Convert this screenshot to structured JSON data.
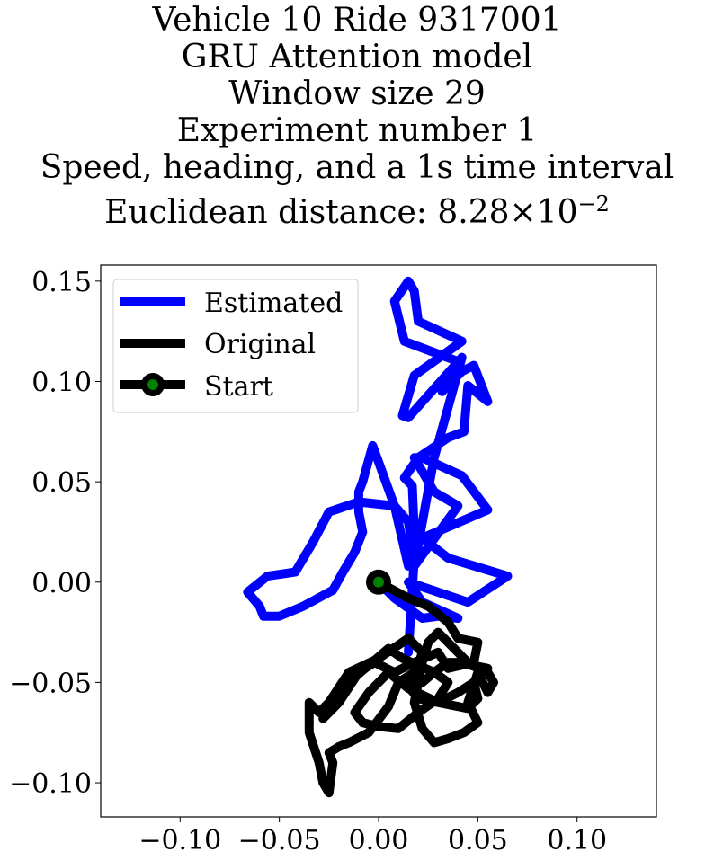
{
  "title_lines": [
    "Vehicle 10 Ride 9317001",
    "GRU Attention model",
    "Window size 29",
    "Experiment number 1",
    "Speed, heading, and a 1s time interval"
  ],
  "distance": {
    "prefix": "Euclidean distance: ",
    "mantissa": "8.28",
    "times": "×",
    "base": "10",
    "exponent": "−2"
  },
  "colors": {
    "estimated": "#0000ff",
    "original": "#000000",
    "start_fill": "#008000"
  },
  "chart_data": {
    "type": "line",
    "xlim": [
      -0.14,
      0.14
    ],
    "ylim": [
      -0.117,
      0.158
    ],
    "xticks": [
      -0.1,
      -0.05,
      0.0,
      0.05,
      0.1
    ],
    "yticks": [
      -0.1,
      -0.05,
      0.0,
      0.05,
      0.1,
      0.15
    ],
    "xtick_labels": [
      "−0.10",
      "−0.05",
      "0.00",
      "0.05",
      "0.10"
    ],
    "ytick_labels": [
      "−0.10",
      "−0.05",
      "0.00",
      "0.05",
      "0.10",
      "0.15"
    ],
    "grid": false,
    "legend_position": "top-left",
    "legend": [
      "Estimated",
      "Original",
      "Start"
    ],
    "series": [
      {
        "name": "Estimated",
        "x": [
          0,
          0.008,
          0.022,
          0.03,
          0.04,
          0.022,
          0.015,
          0.045,
          0.065,
          0.035,
          0.022,
          0.055,
          0.042,
          0.022,
          0.018,
          0.028,
          0.04,
          0.018,
          0.028,
          0.042,
          0.015,
          0.012,
          0.018,
          0.042,
          0.02,
          0.018,
          0.015,
          0.008,
          0.013,
          0.04,
          0.032,
          0.042,
          0.048,
          0.055,
          0.045,
          0.043,
          0.035,
          0.02,
          0.013,
          0.017,
          0.018,
          0.015,
          0.008,
          -0.003,
          -0.008,
          -0.01,
          -0.01,
          -0.008,
          -0.012,
          -0.018,
          -0.023,
          -0.038,
          -0.05,
          -0.058,
          -0.06,
          -0.066,
          -0.056,
          -0.042,
          -0.033,
          -0.025,
          -0.01,
          0.008,
          0.015,
          0.018,
          0.015
        ],
        "y": [
          0,
          -0.008,
          -0.018,
          -0.017,
          -0.018,
          -0.01,
          0.0,
          -0.01,
          0.003,
          0.012,
          0.022,
          0.036,
          0.053,
          0.062,
          0.062,
          0.045,
          0.038,
          0.008,
          0.062,
          0.112,
          0.082,
          0.083,
          0.103,
          0.12,
          0.13,
          0.145,
          0.15,
          0.14,
          0.12,
          0.11,
          0.095,
          0.105,
          0.108,
          0.09,
          0.098,
          0.075,
          0.072,
          0.062,
          0.052,
          0.048,
          0.025,
          0.008,
          0.038,
          0.068,
          0.05,
          0.045,
          0.035,
          0.025,
          0.015,
          0.005,
          -0.004,
          -0.012,
          -0.017,
          -0.017,
          -0.012,
          -0.005,
          0.003,
          0.005,
          0.02,
          0.035,
          0.04,
          0.038,
          0.03,
          0.012,
          -0.035
        ]
      },
      {
        "name": "Original",
        "x": [
          0,
          0.015,
          0.025,
          0.035,
          0.04,
          0.05,
          0.048,
          0.035,
          0.03,
          0.018,
          0.008,
          -0.002,
          -0.01,
          -0.02,
          -0.028,
          -0.025,
          -0.015,
          0.0,
          0.015,
          0.022,
          0.018,
          0.015,
          0.02,
          0.03,
          0.04,
          0.048,
          0.05,
          0.045,
          0.03,
          0.015,
          0.005,
          -0.005,
          -0.012,
          -0.008,
          0.0,
          0.01,
          0.02,
          0.03,
          0.035,
          0.028,
          0.012,
          0.005,
          -0.015,
          -0.025,
          -0.03,
          -0.035,
          -0.035,
          -0.03,
          -0.028,
          -0.025,
          -0.023,
          -0.025,
          -0.02,
          -0.015,
          -0.005,
          0.005,
          0.01,
          0.018,
          0.022,
          0.028,
          0.035,
          0.042,
          0.048,
          0.055,
          0.058,
          0.055,
          0.05,
          0.045,
          0.05,
          0.043,
          0.035,
          0.028,
          0.022,
          0.018,
          0.02,
          0.022,
          0.025,
          0.03,
          0.038,
          0.045,
          0.05,
          0.055
        ],
        "y": [
          0,
          -0.008,
          -0.012,
          -0.02,
          -0.028,
          -0.03,
          -0.04,
          -0.043,
          -0.035,
          -0.04,
          -0.045,
          -0.04,
          -0.045,
          -0.06,
          -0.068,
          -0.06,
          -0.045,
          -0.038,
          -0.028,
          -0.035,
          -0.048,
          -0.052,
          -0.058,
          -0.06,
          -0.055,
          -0.05,
          -0.058,
          -0.063,
          -0.06,
          -0.053,
          -0.045,
          -0.055,
          -0.065,
          -0.07,
          -0.072,
          -0.073,
          -0.065,
          -0.058,
          -0.05,
          -0.045,
          -0.038,
          -0.033,
          -0.05,
          -0.06,
          -0.065,
          -0.06,
          -0.075,
          -0.09,
          -0.1,
          -0.105,
          -0.09,
          -0.085,
          -0.082,
          -0.08,
          -0.075,
          -0.062,
          -0.05,
          -0.045,
          -0.05,
          -0.045,
          -0.04,
          -0.04,
          -0.042,
          -0.045,
          -0.05,
          -0.055,
          -0.045,
          -0.06,
          -0.07,
          -0.075,
          -0.078,
          -0.08,
          -0.073,
          -0.06,
          -0.05,
          -0.04,
          -0.03,
          -0.025,
          -0.033,
          -0.04,
          -0.042,
          -0.043
        ]
      }
    ],
    "start_point": {
      "name": "Start",
      "x": 0,
      "y": 0
    }
  }
}
